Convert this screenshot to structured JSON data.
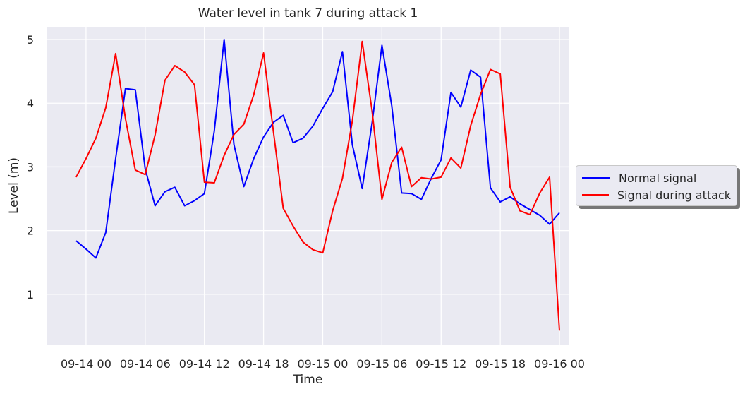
{
  "chart_data": {
    "type": "line",
    "title": "Water level in tank 7 during attack 1",
    "xlabel": "Time",
    "ylabel": "Level (m)",
    "xlim": [
      "2016-09-13 20:00",
      "2016-09-16 01:00"
    ],
    "ylim": [
      0.2,
      5.2
    ],
    "xticks": [
      {
        "t": "2016-09-14 00:00",
        "label": "09-14 00"
      },
      {
        "t": "2016-09-14 06:00",
        "label": "09-14 06"
      },
      {
        "t": "2016-09-14 12:00",
        "label": "09-14 12"
      },
      {
        "t": "2016-09-14 18:00",
        "label": "09-14 18"
      },
      {
        "t": "2016-09-15 00:00",
        "label": "09-15 00"
      },
      {
        "t": "2016-09-15 06:00",
        "label": "09-15 06"
      },
      {
        "t": "2016-09-15 12:00",
        "label": "09-15 12"
      },
      {
        "t": "2016-09-15 18:00",
        "label": "09-15 18"
      },
      {
        "t": "2016-09-16 00:00",
        "label": "09-16 00"
      }
    ],
    "yticks": [
      1,
      2,
      3,
      4,
      5
    ],
    "grid": true,
    "legend_position": "right, outside",
    "x": [
      "2016-09-13 23:00",
      "2016-09-14 00:00",
      "2016-09-14 01:00",
      "2016-09-14 02:00",
      "2016-09-14 03:00",
      "2016-09-14 04:00",
      "2016-09-14 05:00",
      "2016-09-14 06:00",
      "2016-09-14 07:00",
      "2016-09-14 08:00",
      "2016-09-14 09:00",
      "2016-09-14 10:00",
      "2016-09-14 11:00",
      "2016-09-14 12:00",
      "2016-09-14 13:00",
      "2016-09-14 14:00",
      "2016-09-14 15:00",
      "2016-09-14 16:00",
      "2016-09-14 17:00",
      "2016-09-14 18:00",
      "2016-09-14 19:00",
      "2016-09-14 20:00",
      "2016-09-14 21:00",
      "2016-09-14 22:00",
      "2016-09-14 23:00",
      "2016-09-15 00:00",
      "2016-09-15 01:00",
      "2016-09-15 02:00",
      "2016-09-15 03:00",
      "2016-09-15 04:00",
      "2016-09-15 05:00",
      "2016-09-15 06:00",
      "2016-09-15 07:00",
      "2016-09-15 08:00",
      "2016-09-15 09:00",
      "2016-09-15 10:00",
      "2016-09-15 11:00",
      "2016-09-15 12:00",
      "2016-09-15 13:00",
      "2016-09-15 14:00",
      "2016-09-15 15:00",
      "2016-09-15 16:00",
      "2016-09-15 17:00",
      "2016-09-15 18:00",
      "2016-09-15 19:00",
      "2016-09-15 20:00",
      "2016-09-15 21:00",
      "2016-09-15 22:00",
      "2016-09-15 23:00",
      "2016-09-16 00:00"
    ],
    "series": [
      {
        "name": "Normal signal",
        "color": "#0000ff",
        "values": [
          1.84,
          1.71,
          1.57,
          1.97,
          3.13,
          4.23,
          4.21,
          2.97,
          2.39,
          2.61,
          2.68,
          2.39,
          2.47,
          2.58,
          3.56,
          5.0,
          3.35,
          2.69,
          3.13,
          3.47,
          3.7,
          3.81,
          3.38,
          3.45,
          3.64,
          3.92,
          4.18,
          4.81,
          3.35,
          2.66,
          3.69,
          4.91,
          3.96,
          2.59,
          2.58,
          2.49,
          2.82,
          3.11,
          4.17,
          3.94,
          4.52,
          4.41,
          2.67,
          2.45,
          2.53,
          2.42,
          2.33,
          2.24,
          2.1,
          2.28
        ]
      },
      {
        "name": "Signal during attack",
        "color": "#ff0000",
        "values": [
          2.84,
          3.13,
          3.45,
          3.93,
          4.78,
          3.76,
          2.95,
          2.88,
          3.5,
          4.36,
          4.59,
          4.49,
          4.29,
          2.76,
          2.75,
          3.18,
          3.51,
          3.67,
          4.13,
          4.79,
          3.55,
          2.35,
          2.07,
          1.82,
          1.7,
          1.65,
          2.31,
          2.82,
          3.72,
          4.97,
          3.88,
          2.49,
          3.07,
          3.31,
          2.69,
          2.83,
          2.81,
          2.84,
          3.14,
          2.98,
          3.65,
          4.14,
          4.53,
          4.46,
          2.68,
          2.31,
          2.25,
          2.59,
          2.84,
          0.43
        ]
      }
    ]
  }
}
